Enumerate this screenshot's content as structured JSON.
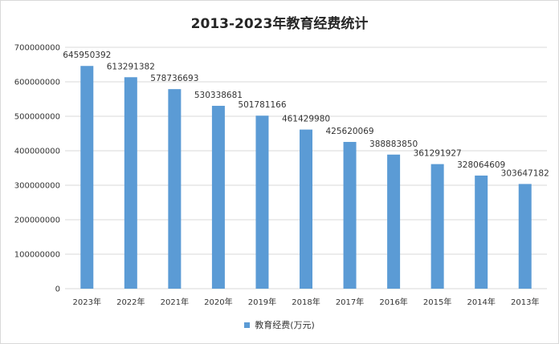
{
  "chart_data": {
    "type": "bar",
    "title": "2013-2023年教育经费统计",
    "categories": [
      "2023年",
      "2022年",
      "2021年",
      "2020年",
      "2019年",
      "2018年",
      "2017年",
      "2016年",
      "2015年",
      "2014年",
      "2013年"
    ],
    "series": [
      {
        "name": "教育经费(万元)",
        "values": [
          645950392,
          613291382,
          578736693,
          530338681,
          501781166,
          461429980,
          425620069,
          388883850,
          361291927,
          328064609,
          303647182
        ]
      }
    ],
    "data_labels": [
      "645950392",
      "613291382",
      "578736693",
      "530338681",
      "501781166",
      "461429980",
      "425620069",
      "388883850",
      "361291927",
      "328064609",
      "303647182"
    ],
    "y_ticks": [
      0,
      100000000,
      200000000,
      300000000,
      400000000,
      500000000,
      600000000,
      700000000
    ],
    "y_tick_labels": [
      "0",
      "100000000",
      "200000000",
      "300000000",
      "400000000",
      "500000000",
      "600000000",
      "700000000"
    ],
    "ylim": [
      0,
      700000000
    ],
    "xlabel": "",
    "ylabel": "",
    "grid": true,
    "legend_position": "bottom",
    "colors": {
      "bar": "#5b9bd5",
      "grid": "#d9d9d9",
      "text": "#333333"
    }
  }
}
